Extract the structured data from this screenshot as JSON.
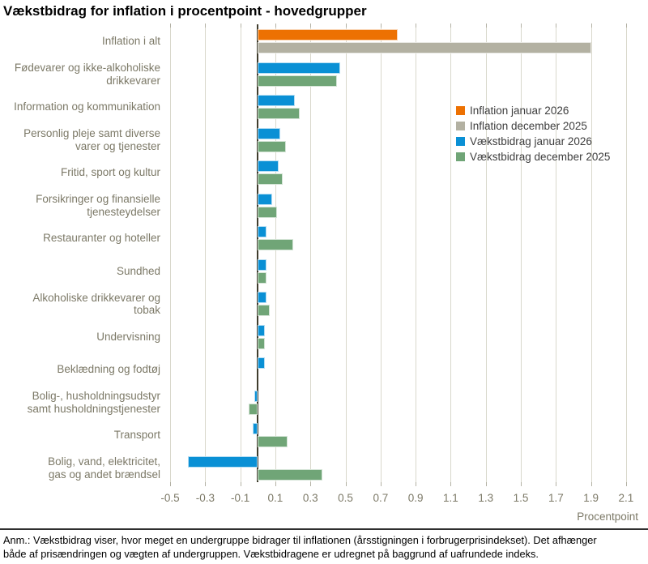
{
  "chart_data": {
    "type": "bar",
    "orientation": "horizontal",
    "title": "Vækstbidrag for inflation i procentpoint - hovedgrupper",
    "xlabel": "Procentpoint",
    "xlim": [
      -0.5,
      2.1
    ],
    "x_ticks": [
      -0.5,
      -0.3,
      -0.1,
      0.1,
      0.3,
      0.5,
      0.7,
      0.9,
      1.1,
      1.3,
      1.5,
      1.7,
      1.9,
      2.1
    ],
    "grid": "vertical-on",
    "legend_position": "upper-right-inside",
    "colors": {
      "inflation": [
        "#ed7102",
        "#b3b1a2"
      ],
      "vaekstbidrag": [
        "#0a90d5",
        "#70a577"
      ]
    },
    "legend": [
      {
        "label": "Inflation januar 2026",
        "color": "#ed7102"
      },
      {
        "label": "Inflation december 2025",
        "color": "#b3b1a2"
      },
      {
        "label": "Vækstbidrag januar 2026",
        "color": "#0a90d5"
      },
      {
        "label": "Vækstbidrag december 2025",
        "color": "#70a577"
      }
    ],
    "rows": [
      {
        "label": "Inflation i alt",
        "label_lines": [
          "Inflation i alt"
        ],
        "palette": "inflation",
        "jan_2026": 0.8,
        "dec_2025": 1.9
      },
      {
        "label": "Fødevarer og ikke-alkoholiske drikkevarer",
        "label_lines": [
          "Fødevarer og ikke-alkoholiske",
          "drikkevarer"
        ],
        "palette": "vaekstbidrag",
        "jan_2026": 0.47,
        "dec_2025": 0.45
      },
      {
        "label": "Information og kommunikation",
        "label_lines": [
          "Information og kommunikation"
        ],
        "palette": "vaekstbidrag",
        "jan_2026": 0.21,
        "dec_2025": 0.24
      },
      {
        "label": "Personlig pleje samt diverse varer og tjenester",
        "label_lines": [
          "Personlig pleje samt diverse",
          "varer og tjenester"
        ],
        "palette": "vaekstbidrag",
        "jan_2026": 0.13,
        "dec_2025": 0.16
      },
      {
        "label": "Fritid, sport og kultur",
        "label_lines": [
          "Fritid, sport og kultur"
        ],
        "palette": "vaekstbidrag",
        "jan_2026": 0.12,
        "dec_2025": 0.14
      },
      {
        "label": "Forsikringer og finansielle tjenesteydelser",
        "label_lines": [
          "Forsikringer og finansielle",
          "tjenesteydelser"
        ],
        "palette": "vaekstbidrag",
        "jan_2026": 0.08,
        "dec_2025": 0.11
      },
      {
        "label": "Restauranter og hoteller",
        "label_lines": [
          "Restauranter og hoteller"
        ],
        "palette": "vaekstbidrag",
        "jan_2026": 0.05,
        "dec_2025": 0.2
      },
      {
        "label": "Sundhed",
        "label_lines": [
          "Sundhed"
        ],
        "palette": "vaekstbidrag",
        "jan_2026": 0.05,
        "dec_2025": 0.05
      },
      {
        "label": "Alkoholiske drikkevarer og tobak",
        "label_lines": [
          "Alkoholiske drikkevarer og",
          "tobak"
        ],
        "palette": "vaekstbidrag",
        "jan_2026": 0.05,
        "dec_2025": 0.07
      },
      {
        "label": "Undervisning",
        "label_lines": [
          "Undervisning"
        ],
        "palette": "vaekstbidrag",
        "jan_2026": 0.04,
        "dec_2025": 0.04
      },
      {
        "label": "Beklædning og fodtøj",
        "label_lines": [
          "Beklædning og fodtøj"
        ],
        "palette": "vaekstbidrag",
        "jan_2026": 0.04,
        "dec_2025": 0.0
      },
      {
        "label": "Bolig-, husholdningsudstyr samt husholdningstjenester",
        "label_lines": [
          "Bolig-, husholdningsudstyr",
          "samt husholdningstjenester"
        ],
        "palette": "vaekstbidrag",
        "jan_2026": -0.02,
        "dec_2025": -0.05
      },
      {
        "label": "Transport",
        "label_lines": [
          "Transport"
        ],
        "palette": "vaekstbidrag",
        "jan_2026": -0.03,
        "dec_2025": 0.17
      },
      {
        "label": "Bolig, vand, elektricitet, gas og andet brændsel",
        "label_lines": [
          "Bolig, vand, elektricitet,",
          "gas og andet brændsel"
        ],
        "palette": "vaekstbidrag",
        "jan_2026": -0.4,
        "dec_2025": 0.37
      }
    ]
  },
  "footer": {
    "line1": "Anm.: Vækstbidrag viser, hvor meget en undergruppe bidrager til inflationen (årsstigningen i forbrugerprisindekset). Det afhænger",
    "line2": "både af prisændringen og vægten af undergruppen. Vækstbidragene er udregnet på baggrund af uafrundede indeks."
  }
}
